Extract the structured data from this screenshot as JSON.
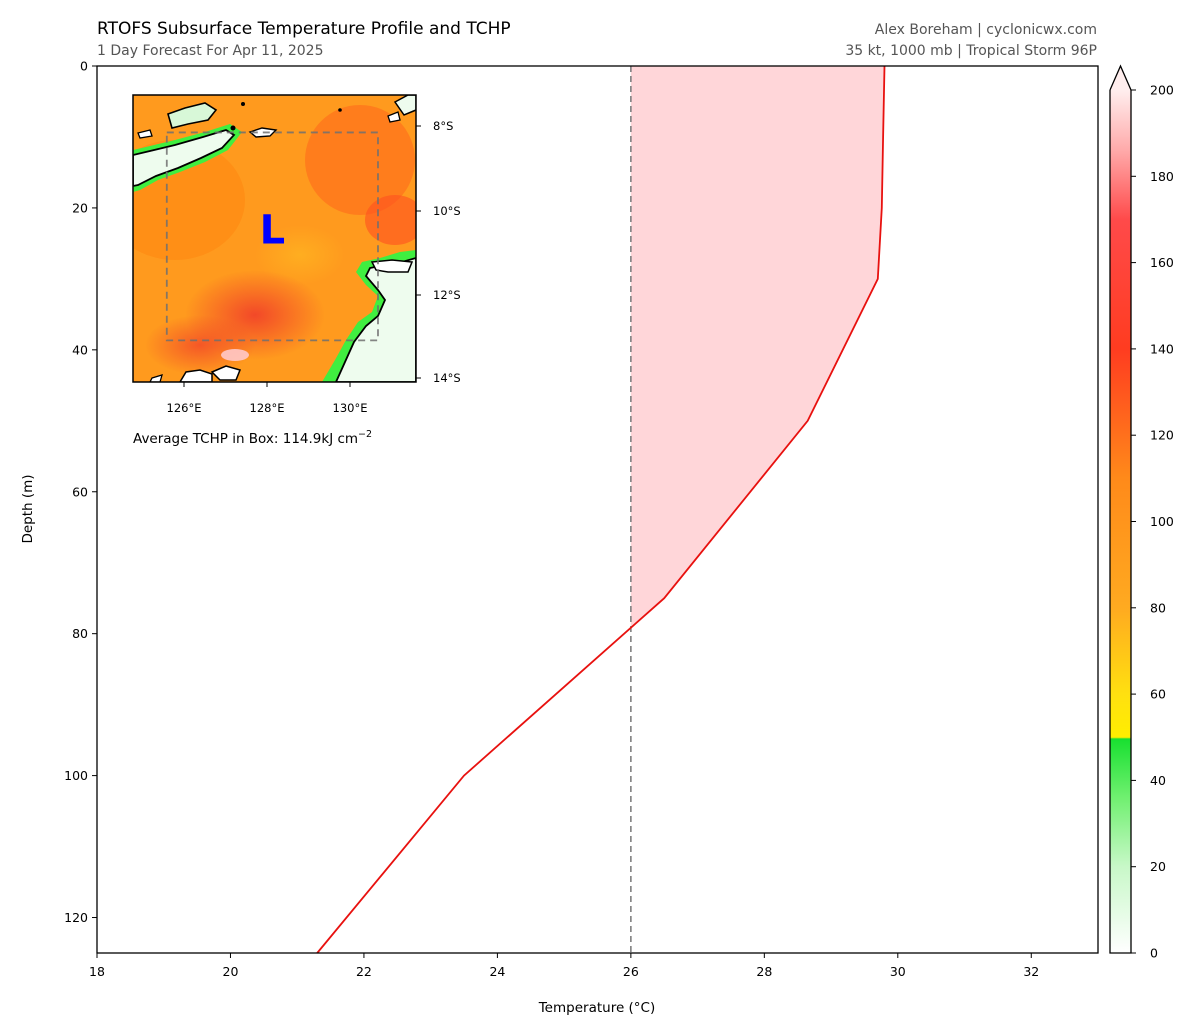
{
  "header": {
    "title": "RTOFS Subsurface Temperature Profile and TCHP",
    "subtitle": "1 Day Forecast For Apr 11, 2025",
    "credit": "Alex Boreham | cyclonicwx.com",
    "storm_info": "35 kt, 1000 mb | Tropical Storm 96P"
  },
  "chart_data": [
    {
      "type": "line",
      "xlabel": "Temperature (°C)",
      "ylabel": "Depth (m)",
      "xlim": [
        18,
        33
      ],
      "ylim": [
        125,
        0
      ],
      "y_inverted": true,
      "xticks": [
        18,
        20,
        22,
        24,
        26,
        28,
        30,
        32
      ],
      "yticks": [
        0,
        20,
        40,
        60,
        80,
        100,
        120
      ],
      "grid": false,
      "series": [
        {
          "color": "#e8110f",
          "points": [
            {
              "x": 29.8,
              "y": 0
            },
            {
              "x": 29.78,
              "y": 10
            },
            {
              "x": 29.76,
              "y": 20
            },
            {
              "x": 29.7,
              "y": 30
            },
            {
              "x": 28.65,
              "y": 50
            },
            {
              "x": 26.5,
              "y": 75
            },
            {
              "x": 23.5,
              "y": 100
            },
            {
              "x": 21.3,
              "y": 125
            }
          ]
        }
      ],
      "reference_line": {
        "x": 26,
        "style": "dashed",
        "color": "#808080"
      },
      "shaded_region": {
        "between_x": 26,
        "depth_to": 79,
        "color": "#ffd6d9"
      }
    },
    {
      "type": "heatmap",
      "xticks": [
        "126°E",
        "128°E",
        "130°E"
      ],
      "yticks": [
        "8°S",
        "10°S",
        "12°S",
        "14°S"
      ],
      "lon_range": [
        124.8,
        131.5
      ],
      "lat_range": [
        -7.2,
        -14.1
      ],
      "storm_marker": "L",
      "storm_marker_color": "#0000ff",
      "storm_position": {
        "lon": 128.1,
        "lat": -10.5
      },
      "averaging_box": {
        "lon": [
          125.6,
          130.6
        ],
        "lat": [
          -8.1,
          -13.1
        ]
      },
      "caption_prefix": "Average TCHP in Box: 114.9kJ cm",
      "caption_exp": "−2"
    },
    {
      "type": "colorbar",
      "range": [
        0,
        200
      ],
      "ticks": [
        0,
        20,
        40,
        60,
        80,
        100,
        120,
        140,
        160,
        180,
        200
      ],
      "extend": "max"
    }
  ]
}
